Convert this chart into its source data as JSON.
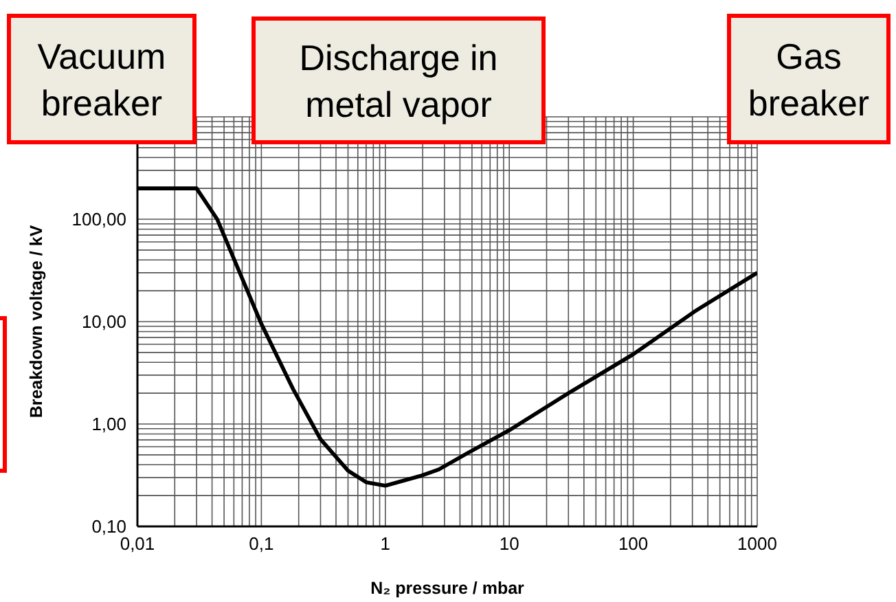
{
  "chart_data": {
    "type": "line",
    "xlabel": "N₂ pressure / mbar",
    "ylabel": "Breakdown voltage / kV",
    "annotations": [
      "Vacuum breaker",
      "Discharge in metal vapor",
      "Gas breaker"
    ],
    "x": [
      0.01,
      0.03,
      0.044,
      0.1,
      0.18,
      0.3,
      0.5,
      0.7,
      1,
      1.9,
      2.7,
      4.6,
      10,
      30,
      100,
      320,
      1000
    ],
    "series": [
      {
        "color": "#000000",
        "values": [
          200,
          200,
          100,
          9.5,
          2.2,
          0.71,
          0.35,
          0.27,
          0.25,
          0.31,
          0.36,
          0.52,
          0.87,
          2,
          4.8,
          12.8,
          30
        ]
      }
    ],
    "xlim": [
      0.01,
      1000
    ],
    "ylim": [
      0.1,
      1000
    ],
    "xticks": [
      {
        "value": 0.01,
        "label": "0,01"
      },
      {
        "value": 0.02,
        "label": null
      },
      {
        "value": 0.03,
        "label": null
      },
      {
        "value": 0.04,
        "label": null
      },
      {
        "value": 0.05,
        "label": null
      },
      {
        "value": 0.06,
        "label": null
      },
      {
        "value": 0.07,
        "label": null
      },
      {
        "value": 0.08,
        "label": null
      },
      {
        "value": 0.09,
        "label": null
      },
      {
        "value": 0.1,
        "label": "0,1"
      },
      {
        "value": 0.2,
        "label": null
      },
      {
        "value": 0.3,
        "label": null
      },
      {
        "value": 0.4,
        "label": null
      },
      {
        "value": 0.5,
        "label": null
      },
      {
        "value": 0.6,
        "label": null
      },
      {
        "value": 0.7,
        "label": null
      },
      {
        "value": 0.8,
        "label": null
      },
      {
        "value": 0.9,
        "label": null
      },
      1,
      {
        "value": 2,
        "label": null
      },
      {
        "value": 3,
        "label": null
      },
      {
        "value": 4,
        "label": null
      },
      {
        "value": 5,
        "label": null
      },
      {
        "value": 6,
        "label": null
      },
      {
        "value": 7,
        "label": null
      },
      {
        "value": 8,
        "label": null
      },
      {
        "value": 9,
        "label": null
      },
      10,
      {
        "value": 20,
        "label": null
      },
      {
        "value": 30,
        "label": null
      },
      {
        "value": 40,
        "label": null
      },
      {
        "value": 50,
        "label": null
      },
      {
        "value": 60,
        "label": null
      },
      {
        "value": 70,
        "label": null
      },
      {
        "value": 80,
        "label": null
      },
      {
        "value": 90,
        "label": null
      },
      100,
      {
        "value": 200,
        "label": null
      },
      {
        "value": 300,
        "label": null
      },
      {
        "value": 400,
        "label": null
      },
      {
        "value": 500,
        "label": null
      },
      {
        "value": 600,
        "label": null
      },
      {
        "value": 700,
        "label": null
      },
      {
        "value": 800,
        "label": null
      },
      {
        "value": 900,
        "label": null
      },
      1000
    ],
    "yticks": [
      {
        "value": 0.1,
        "label": "0,10"
      },
      {
        "value": 0.2,
        "label": null
      },
      {
        "value": 0.3,
        "label": null
      },
      {
        "value": 0.4,
        "label": null
      },
      {
        "value": 0.5,
        "label": null
      },
      {
        "value": 0.6,
        "label": null
      },
      {
        "value": 0.7,
        "label": null
      },
      {
        "value": 0.8,
        "label": null
      },
      {
        "value": 0.9,
        "label": null
      },
      {
        "value": 1,
        "label": "1,00"
      },
      {
        "value": 2,
        "label": null
      },
      {
        "value": 3,
        "label": null
      },
      {
        "value": 4,
        "label": null
      },
      {
        "value": 5,
        "label": null
      },
      {
        "value": 6,
        "label": null
      },
      {
        "value": 7,
        "label": null
      },
      {
        "value": 8,
        "label": null
      },
      {
        "value": 9,
        "label": null
      },
      {
        "value": 10,
        "label": "10,00"
      },
      {
        "value": 20,
        "label": null
      },
      {
        "value": 30,
        "label": null
      },
      {
        "value": 40,
        "label": null
      },
      {
        "value": 50,
        "label": null
      },
      {
        "value": 60,
        "label": null
      },
      {
        "value": 70,
        "label": null
      },
      {
        "value": 80,
        "label": null
      },
      {
        "value": 90,
        "label": null
      },
      {
        "value": 100,
        "label": "100,00"
      },
      {
        "value": 200,
        "label": null
      },
      {
        "value": 300,
        "label": null
      },
      {
        "value": 400,
        "label": null
      },
      {
        "value": 500,
        "label": null
      },
      {
        "value": 600,
        "label": null
      },
      {
        "value": 700,
        "label": null
      },
      {
        "value": 800,
        "label": null
      },
      {
        "value": 900,
        "label": null
      },
      {
        "value": 1000,
        "label": null
      }
    ],
    "grid": true,
    "log": "xy",
    "marker": "none",
    "line_style": "solid"
  }
}
